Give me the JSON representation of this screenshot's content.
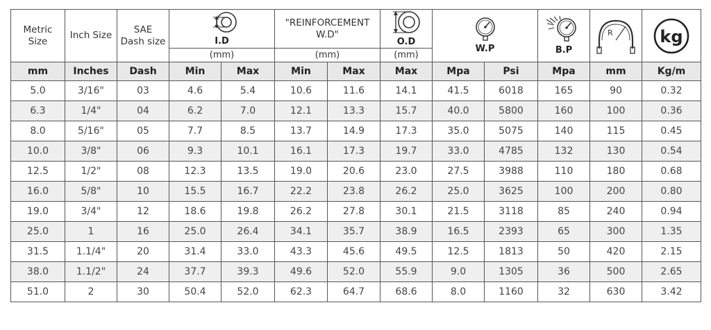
{
  "header": {
    "metric_size": [
      "Metric",
      "Size"
    ],
    "inch_size": "Inch Size",
    "sae": [
      "SAE",
      "Dash size"
    ],
    "id_label": "I.D",
    "id_unit": "(mm)",
    "reinf_label": [
      "\"REINFORCEMENT",
      "W.D\""
    ],
    "reinf_unit": "(mm)",
    "od_label": "O.D",
    "od_unit": "(mm)",
    "wp_label": "W.P",
    "bp_label": "B.P",
    "radius_letter": "R",
    "kg_label": "kg"
  },
  "icons": {
    "id": "inner-diameter-icon",
    "od": "outer-diameter-icon",
    "wp": "pressure-gauge-icon",
    "bp": "burst-gauge-icon",
    "radius": "bend-radius-icon",
    "weight": "weight-kg-icon"
  },
  "units": [
    "mm",
    "Inches",
    "Dash",
    "Min",
    "Max",
    "Min",
    "Max",
    "Max",
    "Mpa",
    "Psi",
    "Mpa",
    "mm",
    "Kg/m"
  ],
  "rows": [
    [
      "5.0",
      "3/16\"",
      "03",
      "4.6",
      "5.4",
      "10.6",
      "11.6",
      "14.1",
      "41.5",
      "6018",
      "165",
      "90",
      "0.32"
    ],
    [
      "6.3",
      "1/4\"",
      "04",
      "6.2",
      "7.0",
      "12.1",
      "13.3",
      "15.7",
      "40.0",
      "5800",
      "160",
      "100",
      "0.36"
    ],
    [
      "8.0",
      "5/16\"",
      "05",
      "7.7",
      "8.5",
      "13.7",
      "14.9",
      "17.3",
      "35.0",
      "5075",
      "140",
      "115",
      "0.45"
    ],
    [
      "10.0",
      "3/8\"",
      "06",
      "9.3",
      "10.1",
      "16.1",
      "17.3",
      "19.7",
      "33.0",
      "4785",
      "132",
      "130",
      "0.54"
    ],
    [
      "12.5",
      "1/2\"",
      "08",
      "12.3",
      "13.5",
      "19.0",
      "20.6",
      "23.0",
      "27.5",
      "3988",
      "110",
      "180",
      "0.68"
    ],
    [
      "16.0",
      "5/8\"",
      "10",
      "15.5",
      "16.7",
      "22.2",
      "23.8",
      "26.2",
      "25.0",
      "3625",
      "100",
      "200",
      "0.80"
    ],
    [
      "19.0",
      "3/4\"",
      "12",
      "18.6",
      "19.8",
      "26.2",
      "27.8",
      "30.1",
      "21.5",
      "3118",
      "85",
      "240",
      "0.94"
    ],
    [
      "25.0",
      "1",
      "16",
      "25.0",
      "26.4",
      "34.1",
      "35.7",
      "38.9",
      "16.5",
      "2393",
      "65",
      "300",
      "1.35"
    ],
    [
      "31.5",
      "1.1/4\"",
      "20",
      "31.4",
      "33.0",
      "43.3",
      "45.6",
      "49.5",
      "12.5",
      "1813",
      "50",
      "420",
      "2.15"
    ],
    [
      "38.0",
      "1.1/2\"",
      "24",
      "37.7",
      "39.3",
      "49.6",
      "52.0",
      "55.9",
      "9.0",
      "1305",
      "36",
      "500",
      "2.65"
    ],
    [
      "51.0",
      "2",
      "30",
      "50.4",
      "52.0",
      "62.3",
      "64.7",
      "68.6",
      "8.0",
      "1160",
      "32",
      "630",
      "3.42"
    ]
  ]
}
